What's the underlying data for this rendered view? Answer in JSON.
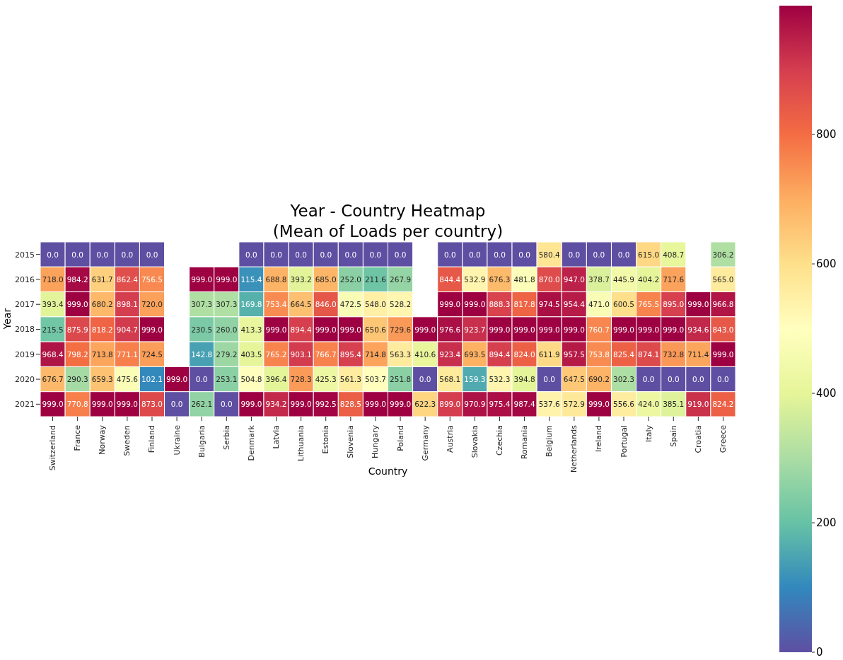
{
  "chart_data": {
    "type": "heatmap",
    "title": "Year - Country Heatmap\n(Mean of Loads per country)",
    "xlabel": "Country",
    "ylabel": "Year",
    "clim": [
      0,
      999
    ],
    "cticks": [
      0,
      200,
      400,
      600,
      800
    ],
    "cell_labels": [
      [
        "0.0",
        "0.0",
        "0.0",
        "0.0",
        "0.0",
        null,
        null,
        null,
        "0.0",
        "0.0",
        "0.0",
        "0.0",
        "0.0",
        "0.0",
        "0.0",
        null,
        "0.0",
        "0.0",
        "0.0",
        "0.0",
        "580.4",
        "0.0",
        "0.0",
        "0.0",
        "615.0",
        "408.7",
        null,
        "306.2"
      ],
      [
        "718.0",
        "984.2",
        "631.7",
        "862.4",
        "756.5",
        null,
        "999.0",
        "999.0",
        "115.4",
        "688.8",
        "393.2",
        "685.0",
        "252.0",
        "211.6",
        "267.9",
        null,
        "844.4",
        "532.9",
        "676.3",
        "481.8",
        "870.0",
        "947.0",
        "378.7",
        "445.9",
        "404.2",
        "717.6",
        null,
        "565.0"
      ],
      [
        "393.4",
        "999.0",
        "680.2",
        "898.1",
        "720.0",
        null,
        "307.3",
        "307.3",
        "169.8",
        "753.4",
        "664.5",
        "846.0",
        "472.5",
        "548.0",
        "528.2",
        null,
        "999.0",
        "999.0",
        "888.3",
        "817.8",
        "974.5",
        "954.4",
        "471.0",
        "600.5",
        "765.5",
        "895.0",
        "999.0",
        "966.8"
      ],
      [
        "215.5",
        "875.9",
        "818.2",
        "904.7",
        "999.0",
        null,
        "230.5",
        "260.0",
        "413.3",
        "999.0",
        "894.4",
        "999.0",
        "999.0",
        "650.6",
        "729.6",
        "999.0",
        "976.6",
        "923.7",
        "999.0",
        "999.0",
        "999.0",
        "999.0",
        "760.7",
        "999.0",
        "999.0",
        "999.0",
        "934.6",
        "843.0"
      ],
      [
        "968.4",
        "798.2",
        "713.8",
        "771.1",
        "724.5",
        null,
        "142.8",
        "279.2",
        "403.5",
        "765.2",
        "903.1",
        "766.7",
        "895.4",
        "714.8",
        "563.3",
        "410.6",
        "923.4",
        "693.5",
        "894.4",
        "824.0",
        "611.9",
        "957.5",
        "753.8",
        "825.4",
        "874.1",
        "732.8",
        "711.4",
        "999.0"
      ],
      [
        "676.7",
        "290.3",
        "659.3",
        "475.6",
        "102.1",
        "999.0",
        "0.0",
        "253.1",
        "504.8",
        "396.4",
        "728.3",
        "425.3",
        "561.3",
        "503.7",
        "251.8",
        "0.0",
        "568.1",
        "159.3",
        "532.3",
        "394.8",
        "0.0",
        "647.5",
        "690.2",
        "302.3",
        "0.0",
        "0.0",
        "0.0",
        "0.0"
      ],
      [
        "999.0",
        "770.8",
        "999.0",
        "999.0",
        "873.0",
        "0.0",
        "262.1",
        "0.0",
        "999.0",
        "934.2",
        "999.0",
        "992.5",
        "828.5",
        "999.0",
        "999.0",
        "622.3",
        "899.0",
        "970.9",
        "975.4",
        "987.4",
        "537.6",
        "572.9",
        "999.0",
        "556.6",
        "424.0",
        "385.1",
        "919.0",
        "824.2"
      ]
    ],
    "categories": [
      "Switzerland",
      "France",
      "Norway",
      "Sweden",
      "Finland",
      "Ukraine",
      "Bulgaria",
      "Serbia",
      "Denmark",
      "Latvia",
      "Lithuania",
      "Estonia",
      "Slovenia",
      "Hungary",
      "Poland",
      "Germany",
      "Austria",
      "Slovakia",
      "Czechia",
      "Romania",
      "Belgium",
      "Netherlands",
      "Ireland",
      "Portugal",
      "Italy",
      "Spain",
      "Croatia",
      "Greece"
    ],
    "y_categories": [
      "2015",
      "2016",
      "2017",
      "2018",
      "2019",
      "2020",
      "2021"
    ],
    "cells": [
      [
        0.0,
        0.0,
        0.0,
        0.0,
        0.0,
        null,
        null,
        null,
        0.0,
        0.0,
        0.0,
        0.0,
        0.0,
        0.0,
        0.0,
        null,
        0.0,
        0.0,
        0.0,
        0.0,
        580.4,
        0.0,
        0.0,
        0.0,
        615.0,
        408.7,
        null,
        306.2
      ],
      [
        718.0,
        984.2,
        631.7,
        862.4,
        756.5,
        null,
        999.0,
        999.0,
        115.4,
        688.8,
        393.2,
        685.0,
        252.0,
        211.6,
        267.9,
        null,
        844.4,
        532.9,
        676.3,
        481.8,
        870.0,
        947.0,
        378.7,
        445.9,
        404.2,
        717.6,
        null,
        565.0
      ],
      [
        393.4,
        999.0,
        680.2,
        898.1,
        720.0,
        null,
        307.3,
        307.3,
        169.8,
        753.4,
        664.5,
        846.0,
        472.5,
        548.0,
        528.2,
        null,
        999.0,
        999.0,
        888.3,
        817.8,
        974.5,
        954.4,
        471.0,
        600.5,
        765.5,
        895.0,
        999.0,
        966.8
      ],
      [
        215.5,
        875.9,
        818.2,
        904.7,
        999.0,
        null,
        230.5,
        260.0,
        413.3,
        999.0,
        894.4,
        999.0,
        999.0,
        650.6,
        729.6,
        999.0,
        976.6,
        923.7,
        999.0,
        999.0,
        999.0,
        999.0,
        760.7,
        999.0,
        999.0,
        999.0,
        934.6,
        843.0
      ],
      [
        968.4,
        798.2,
        713.8,
        771.1,
        724.5,
        null,
        142.8,
        279.2,
        403.5,
        765.2,
        903.1,
        766.7,
        895.4,
        714.8,
        563.3,
        410.6,
        923.4,
        693.5,
        894.4,
        824.0,
        611.9,
        957.5,
        753.8,
        825.4,
        874.1,
        732.8,
        711.4,
        999.0
      ],
      [
        676.7,
        290.3,
        659.3,
        475.6,
        102.1,
        999.0,
        0.0,
        253.1,
        504.8,
        396.4,
        728.3,
        425.3,
        561.3,
        503.7,
        251.8,
        0.0,
        568.1,
        159.3,
        532.3,
        394.8,
        0.0,
        647.5,
        690.2,
        302.3,
        0.0,
        0.0,
        0.0,
        0.0
      ],
      [
        999.0,
        770.8,
        999.0,
        999.0,
        873.0,
        0.0,
        262.1,
        0.0,
        999.0,
        934.2,
        999.0,
        992.5,
        828.5,
        999.0,
        999.0,
        622.3,
        899.0,
        970.9,
        975.4,
        987.4,
        537.6,
        572.9,
        999.0,
        556.6,
        424.0,
        385.1,
        919.0,
        824.2
      ]
    ]
  }
}
